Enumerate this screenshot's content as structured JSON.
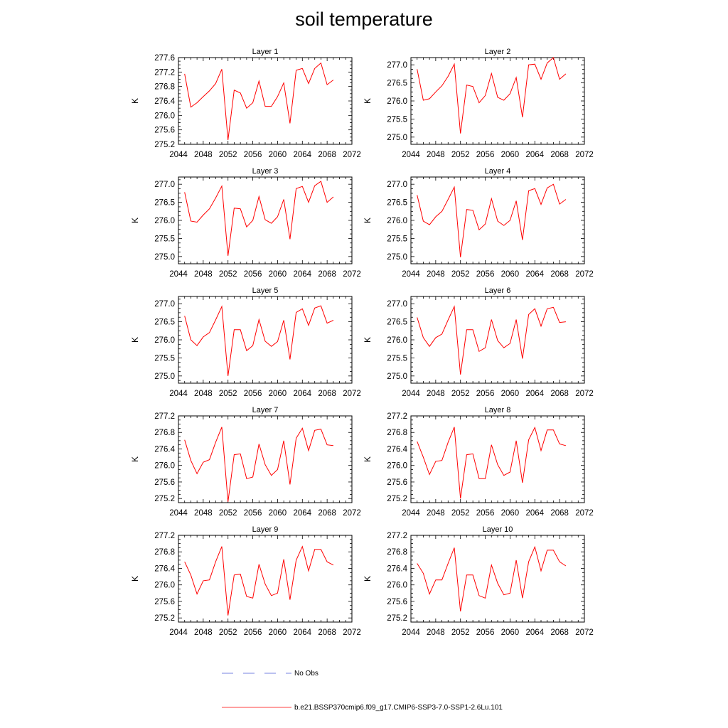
{
  "title": "soil temperature",
  "legend": {
    "obs_label": "No Obs",
    "obs_color": "#4b5bd6",
    "model_label": "b.e21.BSSP370cmip6.f09_g17.CMIP6-SSP3-7.0-SSP1-2.6Lu.101",
    "model_color": "#ff0000"
  },
  "chart_data": [
    {
      "type": "line",
      "title": "Layer 1",
      "ylabel": "K",
      "xlim": [
        2044,
        2072
      ],
      "ylim": [
        275.2,
        277.6
      ],
      "xticks": [
        2044,
        2048,
        2052,
        2056,
        2060,
        2064,
        2068,
        2072
      ],
      "yticks": [
        275.2,
        275.6,
        276.0,
        276.4,
        276.8,
        277.2,
        277.6
      ],
      "series": [
        {
          "color": "#ff0000",
          "x": [
            2045,
            2046,
            2047,
            2048,
            2049,
            2050,
            2051,
            2052,
            2053,
            2054,
            2055,
            2056,
            2057,
            2058,
            2059,
            2060,
            2061,
            2062,
            2063,
            2064,
            2065,
            2066,
            2067,
            2068,
            2069
          ],
          "y": [
            277.15,
            276.23,
            276.35,
            276.52,
            276.68,
            276.88,
            277.28,
            275.32,
            276.7,
            276.62,
            276.2,
            276.35,
            276.95,
            276.25,
            276.25,
            276.52,
            276.9,
            275.78,
            277.25,
            277.3,
            276.88,
            277.3,
            277.45,
            276.85,
            276.98
          ]
        }
      ]
    },
    {
      "type": "line",
      "title": "Layer 2",
      "ylabel": "K",
      "xlim": [
        2044,
        2072
      ],
      "ylim": [
        274.8,
        277.2
      ],
      "xticks": [
        2044,
        2048,
        2052,
        2056,
        2060,
        2064,
        2068,
        2072
      ],
      "yticks": [
        275.0,
        275.5,
        276.0,
        276.5,
        277.0
      ],
      "series": [
        {
          "color": "#ff0000",
          "x": [
            2045,
            2046,
            2047,
            2048,
            2049,
            2050,
            2051,
            2052,
            2053,
            2054,
            2055,
            2056,
            2057,
            2058,
            2059,
            2060,
            2061,
            2062,
            2063,
            2064,
            2065,
            2066,
            2067,
            2068,
            2069
          ],
          "y": [
            276.88,
            276.02,
            276.06,
            276.25,
            276.42,
            276.68,
            277.02,
            275.1,
            276.44,
            276.4,
            275.95,
            276.15,
            276.76,
            276.1,
            276.02,
            276.2,
            276.65,
            275.55,
            277.0,
            277.02,
            276.6,
            277.05,
            277.2,
            276.6,
            276.75
          ]
        }
      ]
    },
    {
      "type": "line",
      "title": "Layer 3",
      "ylabel": "K",
      "xlim": [
        2044,
        2072
      ],
      "ylim": [
        274.8,
        277.2
      ],
      "xticks": [
        2044,
        2048,
        2052,
        2056,
        2060,
        2064,
        2068,
        2072
      ],
      "yticks": [
        275.0,
        275.5,
        276.0,
        276.5,
        277.0
      ],
      "series": [
        {
          "color": "#ff0000",
          "x": [
            2045,
            2046,
            2047,
            2048,
            2049,
            2050,
            2051,
            2052,
            2053,
            2054,
            2055,
            2056,
            2057,
            2058,
            2059,
            2060,
            2061,
            2062,
            2063,
            2064,
            2065,
            2066,
            2067,
            2068,
            2069
          ],
          "y": [
            276.78,
            275.98,
            275.95,
            276.15,
            276.32,
            276.62,
            276.95,
            275.02,
            276.34,
            276.32,
            275.82,
            276.0,
            276.66,
            276.02,
            275.92,
            276.1,
            276.58,
            275.48,
            276.88,
            276.94,
            276.5,
            276.96,
            277.08,
            276.5,
            276.65
          ]
        }
      ]
    },
    {
      "type": "line",
      "title": "Layer 4",
      "ylabel": "K",
      "xlim": [
        2044,
        2072
      ],
      "ylim": [
        274.8,
        277.2
      ],
      "xticks": [
        2044,
        2048,
        2052,
        2056,
        2060,
        2064,
        2068,
        2072
      ],
      "yticks": [
        275.0,
        275.5,
        276.0,
        276.5,
        277.0
      ],
      "series": [
        {
          "color": "#ff0000",
          "x": [
            2045,
            2046,
            2047,
            2048,
            2049,
            2050,
            2051,
            2052,
            2053,
            2054,
            2055,
            2056,
            2057,
            2058,
            2059,
            2060,
            2061,
            2062,
            2063,
            2064,
            2065,
            2066,
            2067,
            2068,
            2069
          ],
          "y": [
            276.7,
            275.98,
            275.88,
            276.1,
            276.25,
            276.58,
            276.92,
            274.98,
            276.3,
            276.28,
            275.74,
            275.9,
            276.6,
            275.98,
            275.86,
            276.0,
            276.54,
            275.46,
            276.82,
            276.88,
            276.44,
            276.9,
            277.0,
            276.45,
            276.58
          ]
        }
      ]
    },
    {
      "type": "line",
      "title": "Layer 5",
      "ylabel": "K",
      "xlim": [
        2044,
        2072
      ],
      "ylim": [
        274.8,
        277.2
      ],
      "xticks": [
        2044,
        2048,
        2052,
        2056,
        2060,
        2064,
        2068,
        2072
      ],
      "yticks": [
        275.0,
        275.5,
        276.0,
        276.5,
        277.0
      ],
      "series": [
        {
          "color": "#ff0000",
          "x": [
            2045,
            2046,
            2047,
            2048,
            2049,
            2050,
            2051,
            2052,
            2053,
            2054,
            2055,
            2056,
            2057,
            2058,
            2059,
            2060,
            2061,
            2062,
            2063,
            2064,
            2065,
            2066,
            2067,
            2068,
            2069
          ],
          "y": [
            276.66,
            276.0,
            275.84,
            276.08,
            276.2,
            276.55,
            276.92,
            275.0,
            276.28,
            276.28,
            275.7,
            275.84,
            276.56,
            275.96,
            275.82,
            275.95,
            276.54,
            275.46,
            276.76,
            276.86,
            276.4,
            276.88,
            276.94,
            276.46,
            276.54
          ]
        }
      ]
    },
    {
      "type": "line",
      "title": "Layer 6",
      "ylabel": "K",
      "xlim": [
        2044,
        2072
      ],
      "ylim": [
        274.8,
        277.2
      ],
      "xticks": [
        2044,
        2048,
        2052,
        2056,
        2060,
        2064,
        2068,
        2072
      ],
      "yticks": [
        275.0,
        275.5,
        276.0,
        276.5,
        277.0
      ],
      "series": [
        {
          "color": "#ff0000",
          "x": [
            2045,
            2046,
            2047,
            2048,
            2049,
            2050,
            2051,
            2052,
            2053,
            2054,
            2055,
            2056,
            2057,
            2058,
            2059,
            2060,
            2061,
            2062,
            2063,
            2064,
            2065,
            2066,
            2067,
            2068,
            2069
          ],
          "y": [
            276.62,
            276.06,
            275.82,
            276.06,
            276.16,
            276.55,
            276.92,
            275.04,
            276.28,
            276.28,
            275.68,
            275.78,
            276.56,
            275.98,
            275.78,
            275.9,
            276.56,
            275.48,
            276.7,
            276.86,
            276.38,
            276.86,
            276.9,
            276.48,
            276.5
          ]
        }
      ]
    },
    {
      "type": "line",
      "title": "Layer 7",
      "ylabel": "K",
      "xlim": [
        2044,
        2072
      ],
      "ylim": [
        275.1,
        277.2
      ],
      "xticks": [
        2044,
        2048,
        2052,
        2056,
        2060,
        2064,
        2068,
        2072
      ],
      "yticks": [
        275.2,
        275.6,
        276.0,
        276.4,
        276.8,
        277.2
      ],
      "series": [
        {
          "color": "#ff0000",
          "x": [
            2045,
            2046,
            2047,
            2048,
            2049,
            2050,
            2051,
            2052,
            2053,
            2054,
            2055,
            2056,
            2057,
            2058,
            2059,
            2060,
            2061,
            2062,
            2063,
            2064,
            2065,
            2066,
            2067,
            2068,
            2069
          ],
          "y": [
            276.62,
            276.12,
            275.8,
            276.08,
            276.14,
            276.56,
            276.93,
            275.12,
            276.26,
            276.28,
            275.68,
            275.72,
            276.52,
            276.02,
            275.76,
            275.9,
            276.6,
            275.54,
            276.66,
            276.9,
            276.36,
            276.85,
            276.88,
            276.5,
            276.48
          ]
        }
      ]
    },
    {
      "type": "line",
      "title": "Layer 8",
      "ylabel": "K",
      "xlim": [
        2044,
        2072
      ],
      "ylim": [
        275.1,
        277.2
      ],
      "xticks": [
        2044,
        2048,
        2052,
        2056,
        2060,
        2064,
        2068,
        2072
      ],
      "yticks": [
        275.2,
        275.6,
        276.0,
        276.4,
        276.8,
        277.2
      ],
      "series": [
        {
          "color": "#ff0000",
          "x": [
            2045,
            2046,
            2047,
            2048,
            2049,
            2050,
            2051,
            2052,
            2053,
            2054,
            2055,
            2056,
            2057,
            2058,
            2059,
            2060,
            2061,
            2062,
            2063,
            2064,
            2065,
            2066,
            2067,
            2068,
            2069
          ],
          "y": [
            276.58,
            276.2,
            275.78,
            276.1,
            276.12,
            276.56,
            276.93,
            275.2,
            276.26,
            276.28,
            275.68,
            275.68,
            276.5,
            276.02,
            275.76,
            275.84,
            276.6,
            275.58,
            276.62,
            276.92,
            276.36,
            276.86,
            276.86,
            276.52,
            276.48
          ]
        }
      ]
    },
    {
      "type": "line",
      "title": "Layer 9",
      "ylabel": "K",
      "xlim": [
        2044,
        2072
      ],
      "ylim": [
        275.1,
        277.2
      ],
      "xticks": [
        2044,
        2048,
        2052,
        2056,
        2060,
        2064,
        2068,
        2072
      ],
      "yticks": [
        275.2,
        275.6,
        276.0,
        276.4,
        276.8,
        277.2
      ],
      "series": [
        {
          "color": "#ff0000",
          "x": [
            2045,
            2046,
            2047,
            2048,
            2049,
            2050,
            2051,
            2052,
            2053,
            2054,
            2055,
            2056,
            2057,
            2058,
            2059,
            2060,
            2061,
            2062,
            2063,
            2064,
            2065,
            2066,
            2067,
            2068,
            2069
          ],
          "y": [
            276.56,
            276.24,
            275.78,
            276.1,
            276.12,
            276.56,
            276.93,
            275.26,
            276.24,
            276.26,
            275.72,
            275.68,
            276.5,
            276.02,
            275.74,
            275.8,
            276.62,
            275.64,
            276.6,
            276.93,
            276.34,
            276.86,
            276.86,
            276.56,
            276.48
          ]
        }
      ]
    },
    {
      "type": "line",
      "title": "Layer 10",
      "ylabel": "K",
      "xlim": [
        2044,
        2072
      ],
      "ylim": [
        275.1,
        277.2
      ],
      "xticks": [
        2044,
        2048,
        2052,
        2056,
        2060,
        2064,
        2068,
        2072
      ],
      "yticks": [
        275.2,
        275.6,
        276.0,
        276.4,
        276.8,
        277.2
      ],
      "series": [
        {
          "color": "#ff0000",
          "x": [
            2045,
            2046,
            2047,
            2048,
            2049,
            2050,
            2051,
            2052,
            2053,
            2054,
            2055,
            2056,
            2057,
            2058,
            2059,
            2060,
            2061,
            2062,
            2063,
            2064,
            2065,
            2066,
            2067,
            2068,
            2069
          ],
          "y": [
            276.52,
            276.28,
            275.78,
            276.12,
            276.12,
            276.52,
            276.9,
            275.36,
            276.24,
            276.24,
            275.74,
            275.68,
            276.48,
            276.04,
            275.76,
            275.8,
            276.6,
            275.68,
            276.56,
            276.92,
            276.34,
            276.84,
            276.84,
            276.56,
            276.46
          ]
        }
      ]
    }
  ]
}
